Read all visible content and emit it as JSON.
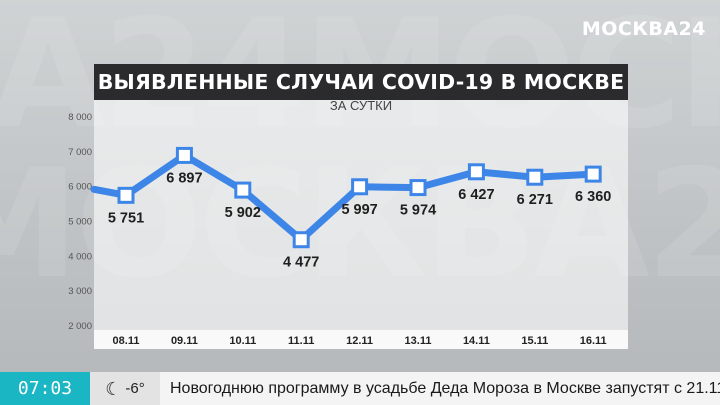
{
  "brand": {
    "logo": "МОСКВА24"
  },
  "title": "ВЫЯВЛЕННЫЕ СЛУЧАИ COVID-19 В МОСКВЕ",
  "subtitle": "ЗА СУТКИ",
  "colors": {
    "line": "#3d86e8",
    "title_bg": "#2b2b2d",
    "clock_bg": "#1bb6c4"
  },
  "chart_data": {
    "type": "line",
    "title": "ВЫЯВЛЕННЫЕ СЛУЧАИ COVID-19 В МОСКВЕ",
    "subtitle": "ЗА СУТКИ",
    "categories": [
      "08.11",
      "09.11",
      "10.11",
      "11.11",
      "12.11",
      "13.11",
      "14.11",
      "15.11",
      "16.11"
    ],
    "values": [
      5751,
      6897,
      5902,
      4477,
      5997,
      5974,
      6427,
      6271,
      6360
    ],
    "value_labels": [
      "5 751",
      "6 897",
      "5 902",
      "4 477",
      "5 997",
      "5 974",
      "6 427",
      "6 271",
      "6 360"
    ],
    "y_ticks": [
      "2 000",
      "3 000",
      "4 000",
      "5 000",
      "6 000",
      "7 000",
      "8 000"
    ],
    "y_tick_values": [
      2000,
      3000,
      4000,
      5000,
      6000,
      7000,
      8000
    ],
    "ylim": [
      2000,
      8000
    ],
    "markers": "square",
    "grid": false,
    "legend": "none"
  },
  "ticker": {
    "time": "07:03",
    "weather_icon": "moon-icon",
    "temperature": "-6°",
    "headline": "Новогоднюю программу в усадьбе Деда Мороза в Москве запустят с 21.11"
  }
}
